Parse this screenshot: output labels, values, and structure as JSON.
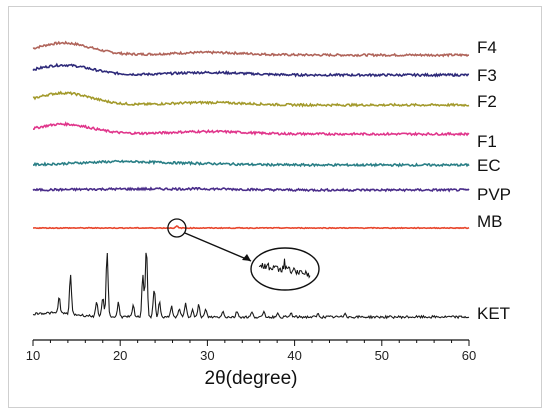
{
  "chart_data": {
    "type": "line",
    "xlabel": "2θ(degree)",
    "xlim": [
      10,
      60
    ],
    "xticks": [
      10,
      20,
      30,
      40,
      50,
      60
    ],
    "yticks_shown": false,
    "grid": false,
    "legend": "labels at right end of each curve",
    "series": [
      {
        "name": "F4",
        "color": "#b0645a",
        "shape": "amorphous",
        "halo_center": 13.5,
        "halo_height": 1.0
      },
      {
        "name": "F3",
        "color": "#2e2a7a",
        "shape": "amorphous",
        "halo_center": 13.5,
        "halo_height": 0.9
      },
      {
        "name": "F2",
        "color": "#a39a2c",
        "shape": "amorphous",
        "halo_center": 13.5,
        "halo_height": 1.0
      },
      {
        "name": "F1",
        "color": "#e0358b",
        "shape": "amorphous",
        "halo_center": 13.5,
        "halo_height": 0.9
      },
      {
        "name": "EC",
        "color": "#2a7f86",
        "shape": "amorphous",
        "halo_center": 20.0,
        "halo_height": 0.55
      },
      {
        "name": "PVP",
        "color": "#4a2d8a",
        "shape": "amorphous",
        "halo_center": 20.0,
        "halo_height": 0.3
      },
      {
        "name": "MB",
        "color": "#e8462c",
        "shape": "flat",
        "small_peak": 26.5
      },
      {
        "name": "KET",
        "color": "#1a1a1a",
        "shape": "crystalline",
        "peaks_2theta": [
          13.0,
          14.3,
          17.3,
          18.0,
          18.5,
          19.8,
          21.5,
          22.6,
          23.0,
          23.9,
          24.5,
          25.9,
          26.8,
          27.5,
          28.3,
          29.0,
          29.8,
          31.8,
          33.4,
          35.1,
          36.5,
          38.0,
          39.6,
          42.7,
          45.8
        ],
        "peaks_intensity": [
          0.22,
          0.52,
          0.18,
          0.26,
          0.88,
          0.2,
          0.15,
          0.58,
          0.95,
          0.38,
          0.2,
          0.14,
          0.12,
          0.18,
          0.12,
          0.16,
          0.1,
          0.08,
          0.08,
          0.06,
          0.06,
          0.05,
          0.05,
          0.04,
          0.06
        ]
      }
    ]
  }
}
